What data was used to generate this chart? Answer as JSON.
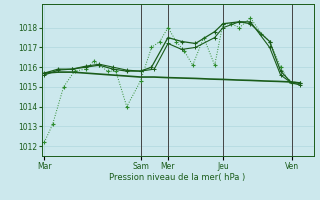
{
  "bg_color": "#cce8ed",
  "grid_color": "#b0d8de",
  "line_color_dark": "#1a5c1a",
  "line_color_medium": "#2d8b2d",
  "xlabel": "Pression niveau de la mer( hPa )",
  "ylim": [
    1011.5,
    1019.2
  ],
  "yticks": [
    1012,
    1013,
    1014,
    1015,
    1016,
    1017,
    1018
  ],
  "x_tick_labels": [
    "Mar",
    "Sam",
    "Mer",
    "Jeu",
    "Ven"
  ],
  "x_tick_positions": [
    0,
    3.5,
    4.5,
    6.5,
    9.0
  ],
  "xlim": [
    -0.1,
    9.8
  ],
  "series1_x": [
    0,
    0.3,
    0.7,
    1.1,
    1.5,
    1.8,
    2.0,
    2.3,
    2.6,
    3.0,
    3.5,
    3.9,
    4.2,
    4.5,
    4.8,
    5.1,
    5.4,
    5.8,
    6.2,
    6.5,
    6.8,
    7.1,
    7.5,
    7.9,
    8.2,
    8.6,
    8.9,
    9.3
  ],
  "series1_y": [
    1012.2,
    1013.1,
    1015.0,
    1015.8,
    1015.9,
    1016.3,
    1016.1,
    1015.8,
    1015.8,
    1014.0,
    1015.3,
    1017.0,
    1017.3,
    1018.0,
    1017.3,
    1016.8,
    1016.1,
    1017.5,
    1016.1,
    1018.2,
    1018.2,
    1018.0,
    1018.5,
    1017.7,
    1017.3,
    1016.0,
    1015.3,
    1015.2
  ],
  "series2_x": [
    0,
    0.5,
    1.0,
    1.5,
    2.0,
    2.5,
    3.0,
    3.5,
    4.0,
    4.5,
    5.0,
    5.5,
    6.0,
    6.5,
    7.0,
    7.5,
    8.0,
    8.5,
    9.0,
    9.3
  ],
  "series2_y": [
    1015.7,
    1015.75,
    1015.75,
    1015.7,
    1015.65,
    1015.6,
    1015.55,
    1015.5,
    1015.5,
    1015.47,
    1015.45,
    1015.43,
    1015.4,
    1015.38,
    1015.35,
    1015.33,
    1015.3,
    1015.28,
    1015.25,
    1015.2
  ],
  "series3_x": [
    0,
    0.5,
    1.0,
    1.5,
    2.0,
    2.5,
    3.0,
    3.5,
    3.9,
    4.5,
    5.0,
    5.5,
    6.2,
    6.5,
    7.1,
    7.5,
    8.2,
    8.6,
    9.0,
    9.3
  ],
  "series3_y": [
    1015.7,
    1015.9,
    1015.9,
    1016.0,
    1016.1,
    1015.9,
    1015.8,
    1015.8,
    1016.0,
    1017.5,
    1017.3,
    1017.2,
    1017.8,
    1018.2,
    1018.3,
    1018.2,
    1017.3,
    1015.8,
    1015.2,
    1015.2
  ],
  "series4_x": [
    0,
    0.5,
    1.0,
    1.5,
    2.0,
    2.5,
    3.0,
    3.5,
    4.0,
    4.5,
    5.0,
    5.5,
    6.2,
    6.5,
    7.1,
    7.5,
    8.2,
    8.6,
    9.0,
    9.3
  ],
  "series4_y": [
    1015.6,
    1015.85,
    1015.9,
    1016.05,
    1016.15,
    1016.0,
    1015.85,
    1015.8,
    1015.9,
    1017.2,
    1016.9,
    1017.0,
    1017.5,
    1018.0,
    1018.3,
    1018.3,
    1017.0,
    1015.6,
    1015.2,
    1015.1
  ],
  "vline_positions": [
    3.5,
    4.5,
    6.5,
    9.0
  ],
  "vline_color": "#444444"
}
